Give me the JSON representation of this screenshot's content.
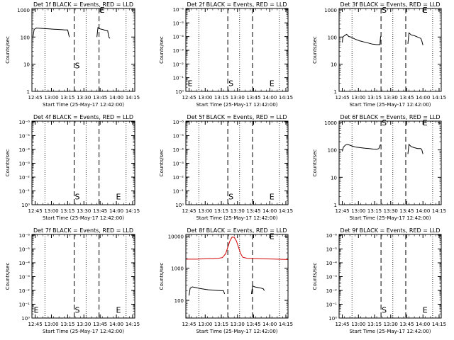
{
  "figure": {
    "x_ticks": [
      "12:45",
      "13:00",
      "13:15",
      "13:30",
      "13:45",
      "14:00",
      "14:15"
    ],
    "xlabel": "Start Time (25-May-17 12:42:00)",
    "ylabel": "Counts/sec"
  },
  "chart_data": [
    {
      "type": "line",
      "title": "Det 1f BLACK = Events, RED = LLD",
      "y_ticks": [
        "1",
        "10",
        "100",
        "1000"
      ],
      "ylim_log": [
        0,
        3.05
      ],
      "xlim_min": [
        0,
        95
      ],
      "markers": [
        {
          "label": "S",
          "x": 39,
          "y_log": 0.95
        },
        {
          "label": "E",
          "x": 62,
          "y_log": 3.0
        }
      ],
      "dotted_x": [
        12,
        50,
        87
      ],
      "dashed_x": [
        39,
        62
      ],
      "series": [
        {
          "color": "#000000",
          "segments": [
            [
              [
                1,
                2.0
              ],
              [
                2,
                2.28
              ],
              [
                4,
                2.33
              ],
              [
                8,
                2.32
              ],
              [
                12,
                2.31
              ],
              [
                16,
                2.3
              ],
              [
                20,
                2.29
              ],
              [
                24,
                2.28
              ],
              [
                28,
                2.27
              ],
              [
                30,
                2.26
              ],
              [
                33,
                2.26
              ],
              [
                34.5,
                2.0
              ]
            ],
            [
              [
                60,
                2.0
              ],
              [
                61,
                2.35
              ],
              [
                63,
                2.3
              ],
              [
                66,
                2.27
              ],
              [
                68,
                2.24
              ],
              [
                70,
                2.23
              ],
              [
                71,
                2.0
              ],
              [
                72,
                1.95
              ]
            ]
          ]
        }
      ]
    },
    {
      "type": "line",
      "title": "Det 2f BLACK = Events, RED = LLD",
      "y_ticks": [
        "10⁰",
        "10⁻¹",
        "10⁻²",
        "10⁻³",
        "10⁻⁴",
        "10⁻⁵",
        "10⁻⁶"
      ],
      "ylim_log": [
        0,
        6.05
      ],
      "xlim_min": [
        0,
        95
      ],
      "markers": [
        {
          "label": "E",
          "x": 1,
          "y_log": 0.6
        },
        {
          "label": "S",
          "x": 39,
          "y_log": 0.6
        },
        {
          "label": "E",
          "x": 77,
          "y_log": 0.6
        }
      ],
      "dotted_x": [
        12,
        50,
        87
      ],
      "dashed_x": [
        39,
        62
      ],
      "series": []
    },
    {
      "type": "line",
      "title": "Det 3f BLACK = Events, RED = LLD",
      "y_ticks": [
        "1",
        "10",
        "100",
        "1000"
      ],
      "ylim_log": [
        0,
        3.05
      ],
      "xlim_min": [
        0,
        95
      ],
      "markers": [
        {
          "label": "S",
          "x": 39,
          "y_log": 3.0
        },
        {
          "label": "E",
          "x": 77,
          "y_log": 3.0
        }
      ],
      "dotted_x": [
        12,
        50,
        87
      ],
      "dashed_x": [
        39,
        62
      ],
      "series": [
        {
          "color": "#000000",
          "segments": [
            [
              [
                3,
                1.8
              ],
              [
                3.5,
                2.0
              ],
              [
                5,
                2.05
              ],
              [
                7,
                2.1
              ],
              [
                9,
                2.02
              ],
              [
                11,
                2.0
              ],
              [
                15,
                1.92
              ],
              [
                19,
                1.86
              ],
              [
                23,
                1.82
              ],
              [
                27,
                1.78
              ],
              [
                31,
                1.74
              ],
              [
                35,
                1.72
              ],
              [
                38,
                1.72
              ],
              [
                38.5,
                2.0
              ],
              [
                39,
                2.05
              ]
            ],
            [
              [
                64,
                1.75
              ],
              [
                65,
                2.15
              ],
              [
                67,
                2.08
              ],
              [
                70,
                2.05
              ],
              [
                73,
                2.0
              ],
              [
                76,
                1.95
              ],
              [
                77,
                1.85
              ],
              [
                78,
                1.7
              ]
            ]
          ]
        }
      ]
    },
    {
      "type": "line",
      "title": "Det 4f BLACK = Events, RED = LLD",
      "y_ticks": [
        "10⁰",
        "10⁻¹",
        "10⁻²",
        "10⁻³",
        "10⁻⁴",
        "10⁻⁵",
        "10⁻⁶"
      ],
      "ylim_log": [
        0,
        6.05
      ],
      "xlim_min": [
        0,
        95
      ],
      "markers": [
        {
          "label": "S",
          "x": 39,
          "y_log": 0.6
        },
        {
          "label": "E",
          "x": 77,
          "y_log": 0.6
        }
      ],
      "dotted_x": [
        12,
        50,
        87
      ],
      "dashed_x": [
        39,
        62
      ],
      "series": []
    },
    {
      "type": "line",
      "title": "Det 5f BLACK = Events, RED = LLD",
      "y_ticks": [
        "10⁰",
        "10⁻¹",
        "10⁻²",
        "10⁻³",
        "10⁻⁴",
        "10⁻⁵",
        "10⁻⁶"
      ],
      "ylim_log": [
        0,
        6.05
      ],
      "xlim_min": [
        0,
        95
      ],
      "markers": [
        {
          "label": "S",
          "x": 39,
          "y_log": 0.6
        },
        {
          "label": "E",
          "x": 77,
          "y_log": 0.6
        }
      ],
      "dotted_x": [
        12,
        50,
        87
      ],
      "dashed_x": [
        39,
        62
      ],
      "series": []
    },
    {
      "type": "line",
      "title": "Det 6f BLACK = Events, RED = LLD",
      "y_ticks": [
        "1",
        "10",
        "100",
        "1000"
      ],
      "ylim_log": [
        0,
        3.05
      ],
      "xlim_min": [
        0,
        95
      ],
      "markers": [
        {
          "label": "S",
          "x": 39,
          "y_log": 3.0
        },
        {
          "label": "E",
          "x": 77,
          "y_log": 3.0
        }
      ],
      "dotted_x": [
        12,
        50,
        87
      ],
      "dashed_x": [
        39,
        62
      ],
      "series": [
        {
          "color": "#000000",
          "segments": [
            [
              [
                3,
                1.95
              ],
              [
                4,
                2.1
              ],
              [
                6,
                2.18
              ],
              [
                8,
                2.2
              ],
              [
                10,
                2.17
              ],
              [
                13,
                2.13
              ],
              [
                16,
                2.1
              ],
              [
                20,
                2.08
              ],
              [
                24,
                2.06
              ],
              [
                28,
                2.05
              ],
              [
                32,
                2.03
              ],
              [
                35,
                2.02
              ],
              [
                37,
                2.05
              ],
              [
                38,
                2.15
              ],
              [
                38.5,
                2.2
              ]
            ],
            [
              [
                64,
                1.85
              ],
              [
                65,
                2.2
              ],
              [
                67,
                2.12
              ],
              [
                70,
                2.08
              ],
              [
                73,
                2.05
              ],
              [
                76,
                2.05
              ],
              [
                77,
                2.0
              ],
              [
                78,
                1.85
              ]
            ]
          ]
        }
      ]
    },
    {
      "type": "line",
      "title": "Det 7f BLACK = Events, RED = LLD",
      "y_ticks": [
        "10⁰",
        "10⁻¹",
        "10⁻²",
        "10⁻³",
        "10⁻⁴",
        "10⁻⁵",
        "10⁻⁶"
      ],
      "ylim_log": [
        0,
        6.05
      ],
      "xlim_min": [
        0,
        95
      ],
      "markers": [
        {
          "label": "E",
          "x": 1,
          "y_log": 0.6
        },
        {
          "label": "S",
          "x": 39,
          "y_log": 0.6
        },
        {
          "label": "E",
          "x": 77,
          "y_log": 0.6
        }
      ],
      "dotted_x": [
        12,
        50,
        87
      ],
      "dashed_x": [
        39,
        62
      ],
      "series": []
    },
    {
      "type": "line",
      "title": "Det 8f BLACK = Events, RED = LLD",
      "y_ticks": [
        "100",
        "1000",
        "10000"
      ],
      "ylim_log": [
        1.45,
        4.05
      ],
      "xlim_min": [
        0,
        95
      ],
      "markers": [
        {
          "label": "E",
          "x": 77,
          "y_log": 4.0
        }
      ],
      "dotted_x": [
        12,
        50,
        87
      ],
      "dashed_x": [
        39,
        62
      ],
      "series": [
        {
          "color": "#000000",
          "segments": [
            [
              [
                3,
                2.15
              ],
              [
                4,
                2.38
              ],
              [
                6,
                2.42
              ],
              [
                9,
                2.4
              ],
              [
                13,
                2.37
              ],
              [
                17,
                2.35
              ],
              [
                21,
                2.33
              ],
              [
                25,
                2.32
              ],
              [
                29,
                2.31
              ],
              [
                33,
                2.3
              ],
              [
                35,
                2.3
              ],
              [
                36,
                2.2
              ]
            ],
            [
              [
                61,
                2.2
              ],
              [
                62,
                2.45
              ],
              [
                64,
                2.42
              ],
              [
                67,
                2.4
              ],
              [
                70,
                2.38
              ],
              [
                72,
                2.36
              ],
              [
                73,
                2.3
              ]
            ]
          ]
        },
        {
          "color": "#d40000",
          "segments": [
            [
              [
                0,
                3.28
              ],
              [
                5,
                3.28
              ],
              [
                10,
                3.28
              ],
              [
                15,
                3.29
              ],
              [
                20,
                3.3
              ],
              [
                25,
                3.3
              ],
              [
                30,
                3.31
              ],
              [
                34,
                3.33
              ],
              [
                37,
                3.45
              ],
              [
                39,
                3.65
              ],
              [
                41,
                3.85
              ],
              [
                43,
                3.97
              ],
              [
                45,
                3.96
              ],
              [
                47,
                3.85
              ],
              [
                49,
                3.65
              ],
              [
                51,
                3.45
              ],
              [
                53,
                3.34
              ],
              [
                57,
                3.31
              ],
              [
                65,
                3.3
              ],
              [
                75,
                3.29
              ],
              [
                85,
                3.28
              ],
              [
                95,
                3.27
              ]
            ]
          ]
        }
      ]
    },
    {
      "type": "line",
      "title": "Det 9f BLACK = Events, RED = LLD",
      "y_ticks": [
        "10⁰",
        "10⁻¹",
        "10⁻²",
        "10⁻³",
        "10⁻⁴",
        "10⁻⁵",
        "10⁻⁶"
      ],
      "ylim_log": [
        0,
        6.05
      ],
      "xlim_min": [
        0,
        95
      ],
      "markers": [
        {
          "label": "S",
          "x": 39,
          "y_log": 0.6
        },
        {
          "label": "E",
          "x": 77,
          "y_log": 0.6
        }
      ],
      "dotted_x": [
        12,
        50,
        87
      ],
      "dashed_x": [
        39,
        62
      ],
      "series": []
    }
  ]
}
